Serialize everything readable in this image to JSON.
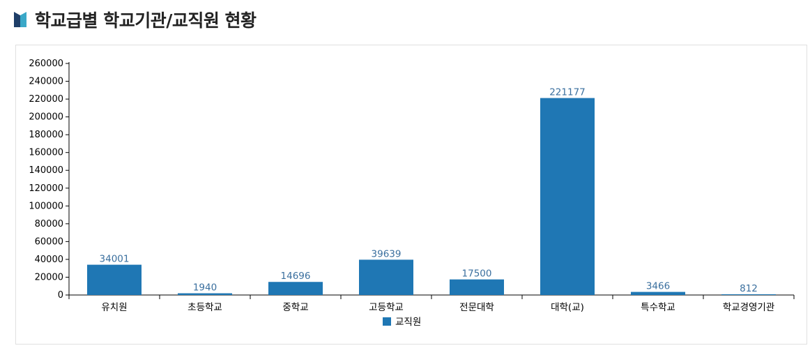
{
  "header": {
    "title": "학교급별 학교기관/교직원 현황",
    "logo_colors": [
      "#1f3f68",
      "#3aa8c8"
    ]
  },
  "chart_data": {
    "type": "bar",
    "categories": [
      "유치원",
      "초등학교",
      "중학교",
      "고등학교",
      "전문대학",
      "대학(교)",
      "특수학교",
      "학교경영기관"
    ],
    "series": [
      {
        "name": "교직원",
        "values": [
          34001,
          1940,
          14696,
          39639,
          17500,
          221177,
          3466,
          812
        ]
      }
    ],
    "ylim": [
      0,
      260000
    ],
    "yticks": [
      0,
      20000,
      40000,
      60000,
      80000,
      100000,
      120000,
      140000,
      160000,
      180000,
      200000,
      220000,
      240000,
      260000
    ],
    "grid": false,
    "legend": "bottom-center",
    "bar_color": "#1f77b4",
    "label_color": "#3a6f9e"
  }
}
